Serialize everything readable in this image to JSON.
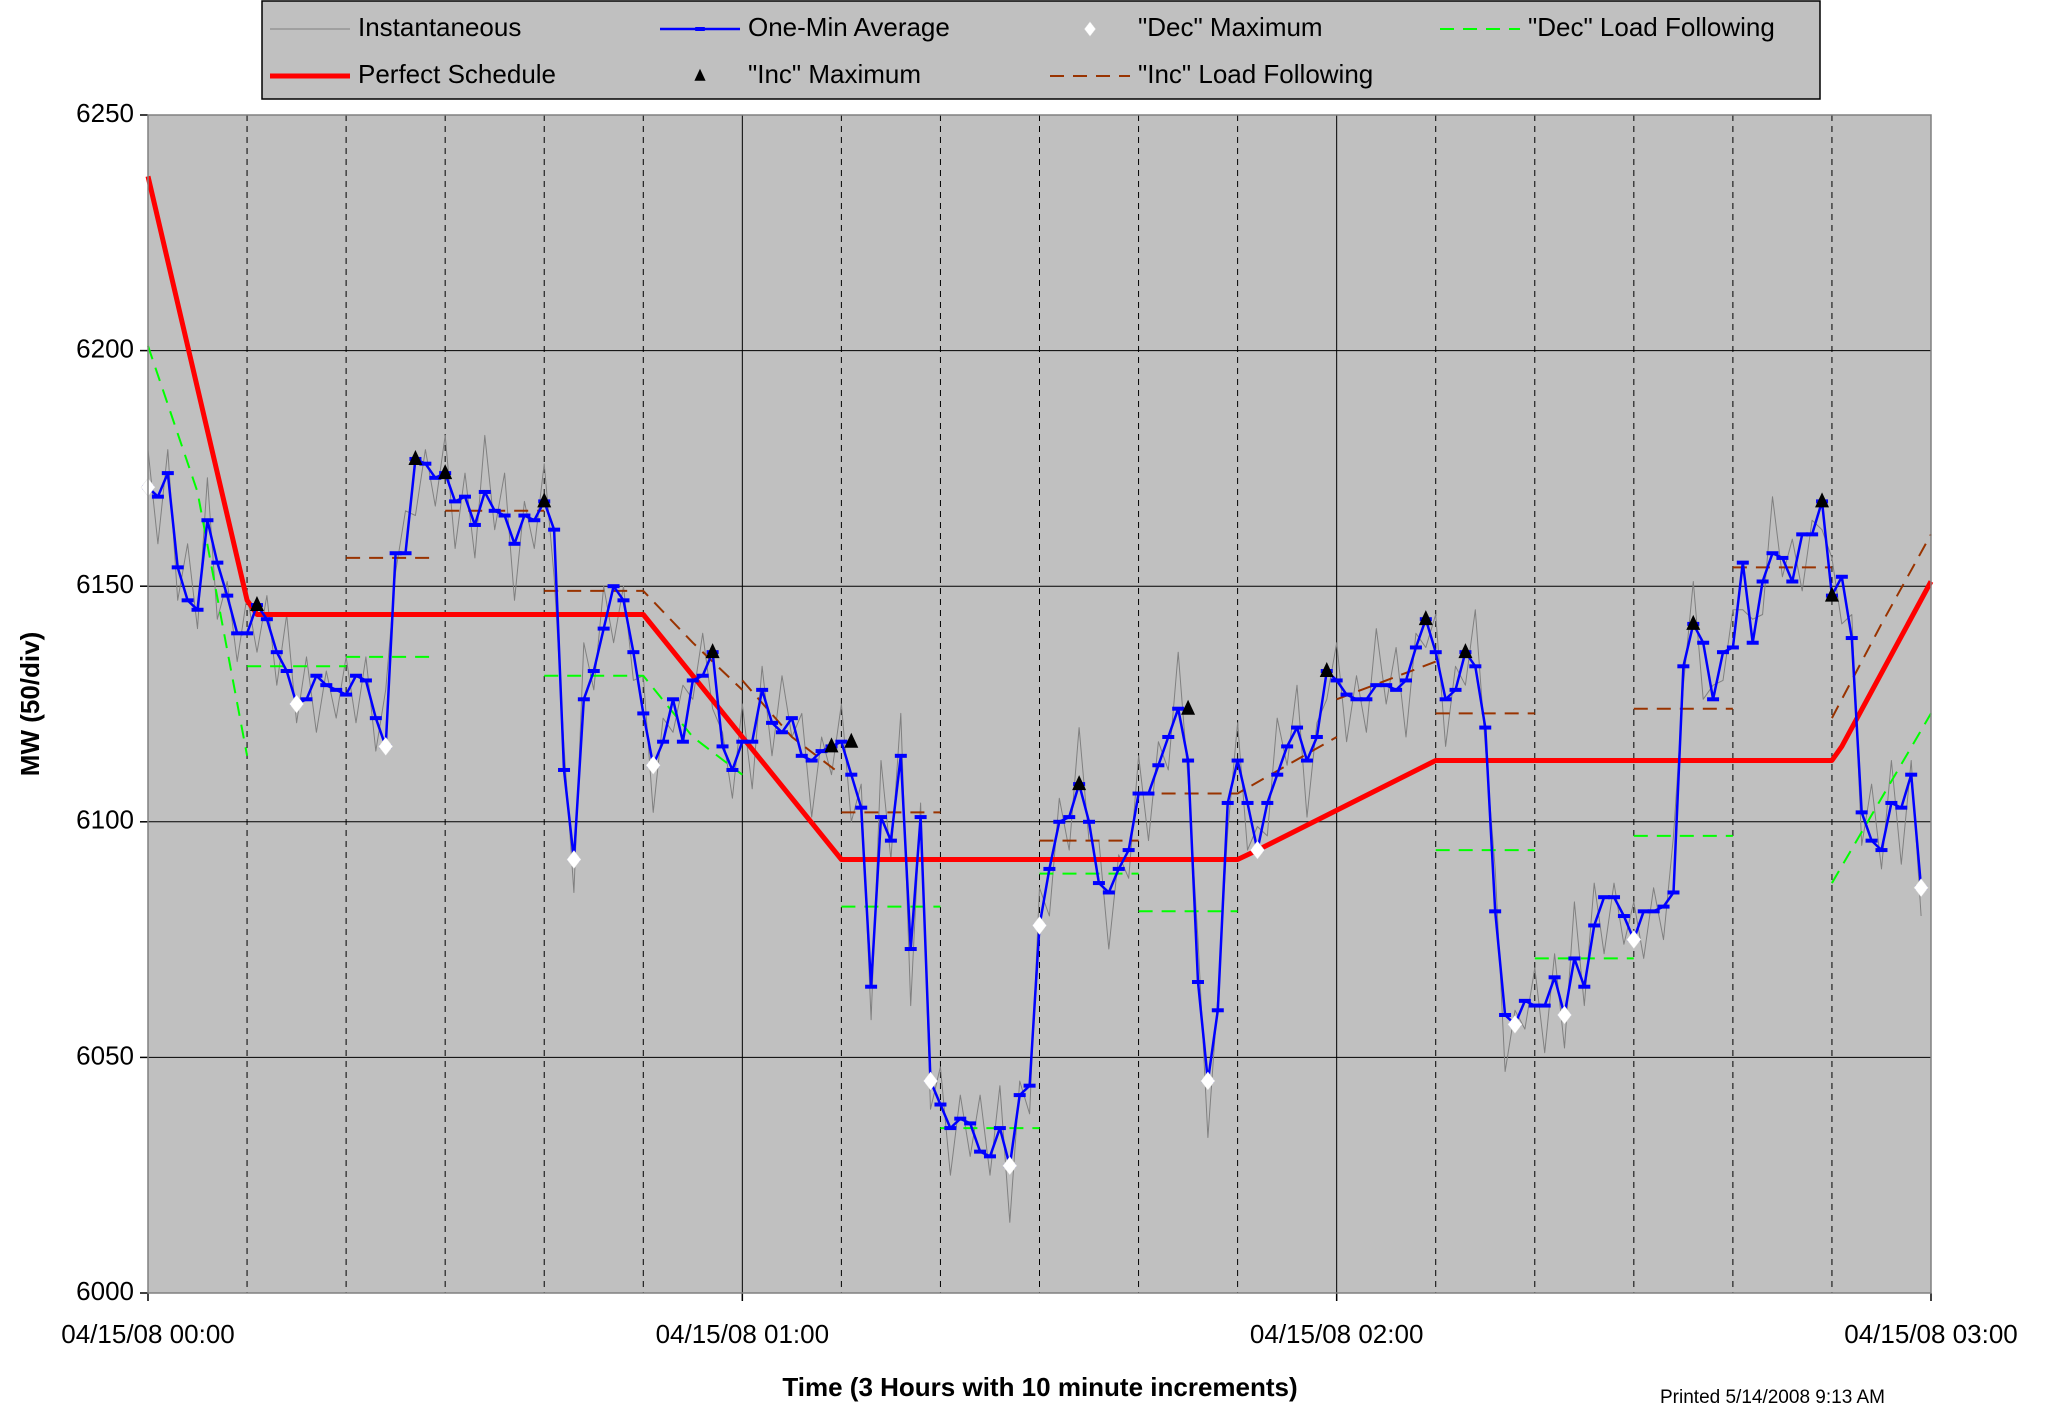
{
  "chart_data": {
    "type": "line",
    "xlabel": "Time (3 Hours with 10 minute increments)",
    "ylabel": "MW (50/div)",
    "footnote": "Printed 5/14/2008 9:13 AM",
    "xlim": [
      0,
      180
    ],
    "xticks": [
      {
        "value": 0,
        "label": "04/15/08 00:00"
      },
      {
        "value": 60,
        "label": "04/15/08 01:00"
      },
      {
        "value": 120,
        "label": "04/15/08 02:00"
      },
      {
        "value": 180,
        "label": "04/15/08 03:00"
      }
    ],
    "xminorticks": [
      10,
      20,
      30,
      40,
      50,
      70,
      80,
      90,
      100,
      110,
      130,
      140,
      150,
      160,
      170
    ],
    "ylim": [
      6000,
      6250
    ],
    "yticks": [
      6000,
      6050,
      6100,
      6150,
      6200,
      6250
    ],
    "grid": true,
    "x": [
      0,
      1,
      2,
      3,
      4,
      5,
      6,
      7,
      8,
      9,
      10,
      11,
      12,
      13,
      14,
      15,
      16,
      17,
      18,
      19,
      20,
      21,
      22,
      23,
      24,
      25,
      26,
      27,
      28,
      29,
      30,
      31,
      32,
      33,
      34,
      35,
      36,
      37,
      38,
      39,
      40,
      41,
      42,
      43,
      44,
      45,
      46,
      47,
      48,
      49,
      50,
      51,
      52,
      53,
      54,
      55,
      56,
      57,
      58,
      59,
      60,
      61,
      62,
      63,
      64,
      65,
      66,
      67,
      68,
      69,
      70,
      71,
      72,
      73,
      74,
      75,
      76,
      77,
      78,
      79,
      80,
      81,
      82,
      83,
      84,
      85,
      86,
      87,
      88,
      89,
      90,
      91,
      92,
      93,
      94,
      95,
      96,
      97,
      98,
      99,
      100,
      101,
      102,
      103,
      104,
      105,
      106,
      107,
      108,
      109,
      110,
      111,
      112,
      113,
      114,
      115,
      116,
      117,
      118,
      119,
      120,
      121,
      122,
      123,
      124,
      125,
      126,
      127,
      128,
      129,
      130,
      131,
      132,
      133,
      134,
      135,
      136,
      137,
      138,
      139,
      140,
      141,
      142,
      143,
      144,
      145,
      146,
      147,
      148,
      149,
      150,
      151,
      152,
      153,
      154,
      155,
      156,
      157,
      158,
      159,
      160,
      161,
      162,
      163,
      164,
      165,
      166,
      167,
      168,
      169,
      170,
      171,
      172,
      173,
      174,
      175,
      176,
      177,
      178,
      179
    ],
    "series": [
      {
        "name": "Instantaneous",
        "color": "#808080",
        "style": "line",
        "width": 1,
        "values": [
          6179,
          6159,
          6179,
          6147,
          6159,
          6141,
          6173,
          6143,
          6151,
          6134,
          6148,
          6136,
          6148,
          6129,
          6144,
          6121,
          6135,
          6119,
          6132,
          6122,
          6135,
          6121,
          6135,
          6115,
          6128,
          6153,
          6166,
          6165,
          6179,
          6167,
          6182,
          6158,
          6174,
          6156,
          6182,
          6162,
          6174,
          6147,
          6168,
          6158,
          6176,
          6152,
          6116,
          6085,
          6138,
          6128,
          6150,
          6138,
          6150,
          6130,
          6131,
          6102,
          6122,
          6119,
          6129,
          6126,
          6140,
          6124,
          6119,
          6105,
          6125,
          6107,
          6133,
          6114,
          6131,
          6118,
          6123,
          6101,
          6118,
          6110,
          6125,
          6100,
          6108,
          6058,
          6113,
          6092,
          6123,
          6061,
          6104,
          6039,
          6048,
          6025,
          6042,
          6029,
          6042,
          6025,
          6044,
          6015,
          6045,
          6038,
          6086,
          6080,
          6105,
          6094,
          6120,
          6096,
          6096,
          6073,
          6093,
          6088,
          6114,
          6096,
          6117,
          6111,
          6136,
          6109,
          6075,
          6033,
          6063,
          6098,
          6121,
          6094,
          6099,
          6097,
          6122,
          6112,
          6129,
          6101,
          6121,
          6126,
          6138,
          6117,
          6131,
          6119,
          6141,
          6125,
          6137,
          6118,
          6140,
          6137,
          6144,
          6116,
          6133,
          6129,
          6145,
          6116,
          6090,
          6047,
          6060,
          6056,
          6069,
          6051,
          6072,
          6052,
          6083,
          6061,
          6087,
          6072,
          6087,
          6074,
          6083,
          6071,
          6086,
          6075,
          6097,
          6129,
          6151,
          6126,
          6129,
          6130,
          6145,
          6145,
          6143,
          6144,
          6169,
          6152,
          6160,
          6149,
          6164,
          6162,
          6156,
          6142,
          6144,
          6095,
          6108,
          6090,
          6113,
          6091,
          6113,
          6080
        ]
      },
      {
        "name": "One-Min Average",
        "color": "#0000ff",
        "style": "line",
        "width": 2.5,
        "marker": "dash",
        "values": [
          6171,
          6169,
          6174,
          6154,
          6147,
          6145,
          6164,
          6155,
          6148,
          6140,
          6140,
          6146,
          6143,
          6136,
          6132,
          6125,
          6126,
          6131,
          6129,
          6128,
          6127,
          6131,
          6130,
          6122,
          6116,
          6157,
          6157,
          6177,
          6176,
          6173,
          6174,
          6168,
          6169,
          6163,
          6170,
          6166,
          6165,
          6159,
          6165,
          6164,
          6168,
          6162,
          6111,
          6092,
          6126,
          6132,
          6141,
          6150,
          6147,
          6136,
          6123,
          6112,
          6117,
          6126,
          6117,
          6130,
          6131,
          6136,
          6116,
          6111,
          6117,
          6117,
          6128,
          6121,
          6119,
          6122,
          6114,
          6113,
          6115,
          6116,
          6117,
          6110,
          6103,
          6065,
          6101,
          6096,
          6114,
          6073,
          6101,
          6045,
          6040,
          6035,
          6037,
          6036,
          6030,
          6029,
          6035,
          6027,
          6042,
          6044,
          6078,
          6090,
          6100,
          6101,
          6108,
          6100,
          6087,
          6085,
          6090,
          6094,
          6106,
          6106,
          6112,
          6118,
          6124,
          6113,
          6066,
          6045,
          6060,
          6104,
          6113,
          6104,
          6094,
          6104,
          6110,
          6116,
          6120,
          6113,
          6118,
          6132,
          6130,
          6127,
          6126,
          6126,
          6129,
          6129,
          6128,
          6130,
          6137,
          6143,
          6136,
          6126,
          6128,
          6136,
          6133,
          6120,
          6081,
          6059,
          6057,
          6062,
          6061,
          6061,
          6067,
          6059,
          6071,
          6065,
          6078,
          6084,
          6084,
          6080,
          6075,
          6081,
          6081,
          6082,
          6085,
          6133,
          6142,
          6138,
          6126,
          6136,
          6137,
          6155,
          6138,
          6151,
          6157,
          6156,
          6151,
          6161,
          6161,
          6168,
          6148,
          6152,
          6139,
          6102,
          6096,
          6094,
          6104,
          6103,
          6110,
          6086
        ]
      },
      {
        "name": "\"Dec\" Maximum",
        "color": "#ffffff",
        "style": "markers",
        "marker": "diamond",
        "x": [
          0,
          15,
          24,
          43,
          51,
          79,
          87,
          90,
          107,
          112,
          138,
          143,
          150,
          179
        ],
        "values": [
          6171,
          6125,
          6116,
          6092,
          6112,
          6045,
          6027,
          6078,
          6045,
          6094,
          6057,
          6059,
          6075,
          6086
        ]
      },
      {
        "name": "\"Dec\" Load Following",
        "color": "#00ff00",
        "style": "line",
        "width": 2,
        "dash": true,
        "x": [
          0,
          5,
          10,
          null,
          10,
          20,
          null,
          20,
          29,
          null,
          40,
          50,
          55,
          60,
          null,
          70,
          80,
          null,
          80,
          90,
          null,
          90,
          100,
          null,
          100,
          110,
          null,
          130,
          140,
          null,
          140,
          150,
          null,
          150,
          160,
          null,
          170,
          180
        ],
        "values": [
          6201,
          6170,
          6114,
          null,
          6133,
          6133,
          null,
          6135,
          6135,
          null,
          6131,
          6131,
          6118,
          6110,
          null,
          6082,
          6082,
          null,
          6035,
          6035,
          null,
          6089,
          6089,
          null,
          6081,
          6081,
          null,
          6094,
          6094,
          null,
          6071,
          6071,
          null,
          6097,
          6097,
          null,
          6087,
          6123
        ]
      },
      {
        "name": "Perfect Schedule",
        "color": "#ff0000",
        "style": "line",
        "width": 5,
        "x": [
          0,
          10,
          11,
          50,
          70,
          110,
          112,
          130,
          170,
          171,
          180
        ],
        "values": [
          6237,
          6147,
          6144,
          6144,
          6092,
          6092,
          6094,
          6113,
          6113,
          6116,
          6151
        ]
      },
      {
        "name": "\"Inc\" Maximum",
        "color": "#000000",
        "style": "markers",
        "marker": "triangle",
        "x": [
          11,
          27,
          30,
          40,
          57,
          69,
          71,
          94,
          105,
          119,
          129,
          133,
          156,
          169,
          170
        ],
        "values": [
          6146,
          6177,
          6174,
          6168,
          6136,
          6116,
          6117,
          6108,
          6124,
          6132,
          6143,
          6136,
          6142,
          6168,
          6148
        ]
      },
      {
        "name": "\"Inc\" Load Following",
        "color": "#993300",
        "style": "line",
        "width": 2,
        "dash": true,
        "x": [
          20,
          29,
          null,
          30,
          40,
          null,
          40,
          50,
          55,
          60,
          null,
          60,
          65,
          70,
          null,
          70,
          80,
          null,
          90,
          100,
          null,
          100,
          110,
          120,
          null,
          120,
          130,
          null,
          130,
          140,
          null,
          150,
          160,
          null,
          160,
          170,
          null,
          170,
          175,
          180
        ],
        "values": [
          6156,
          6156,
          null,
          6166,
          6166,
          null,
          6149,
          6149,
          6138,
          6128,
          null,
          6130,
          6118,
          6110,
          null,
          6102,
          6102,
          null,
          6096,
          6096,
          null,
          6106,
          6106,
          6118,
          null,
          6126,
          6134,
          null,
          6123,
          6123,
          null,
          6124,
          6124,
          null,
          6154,
          6154,
          null,
          6122,
          6142,
          6161
        ]
      }
    ]
  }
}
